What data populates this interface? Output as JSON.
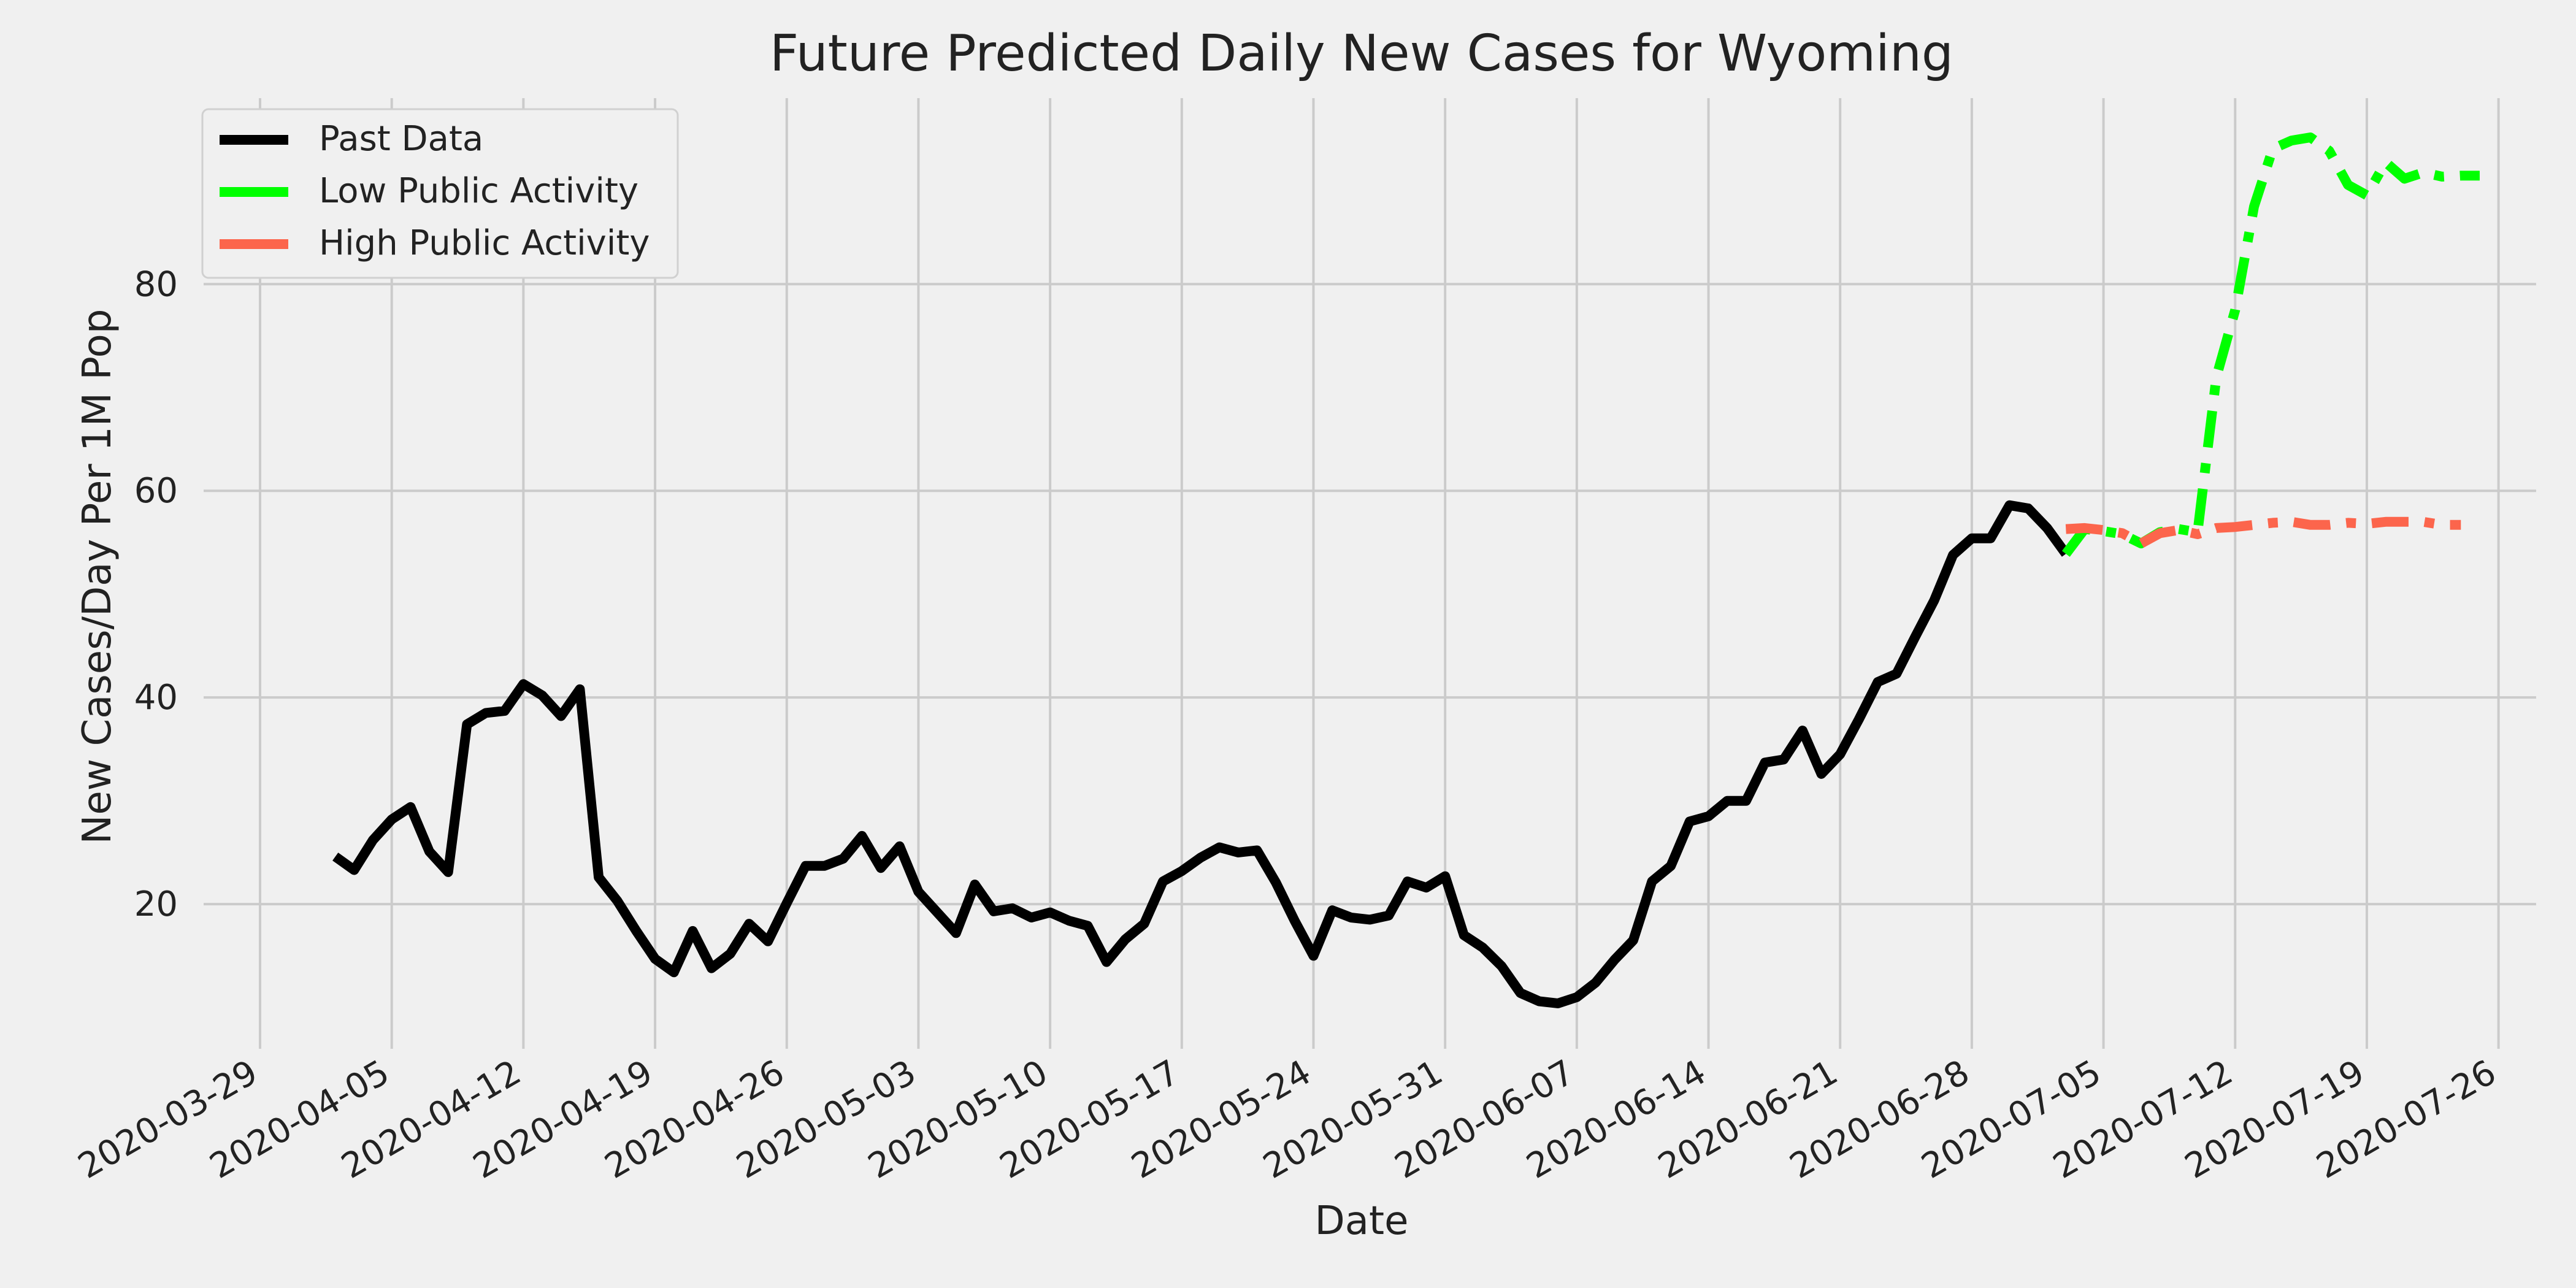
{
  "chart_data": {
    "type": "line",
    "title": "Future Predicted Daily New Cases for Wyoming",
    "xlabel": "Date",
    "ylabel": "New Cases/Day Per 1M Pop",
    "xlim": [
      "2020-03-26",
      "2020-07-28"
    ],
    "ylim": [
      6,
      98
    ],
    "yticks": [
      20,
      40,
      60,
      80
    ],
    "xticks": [
      "2020-03-29",
      "2020-04-05",
      "2020-04-12",
      "2020-04-19",
      "2020-04-26",
      "2020-05-03",
      "2020-05-10",
      "2020-05-17",
      "2020-05-24",
      "2020-05-31",
      "2020-06-07",
      "2020-06-14",
      "2020-06-21",
      "2020-06-28",
      "2020-07-05",
      "2020-07-12",
      "2020-07-19",
      "2020-07-26"
    ],
    "grid": true,
    "legend_position": "top-left",
    "series": [
      {
        "name": "Past Data",
        "color": "#000000",
        "style": "solid",
        "start_date": "2020-04-02",
        "values": [
          24.6,
          23.3,
          26.2,
          28.2,
          29.4,
          25.1,
          23.1,
          37.4,
          38.5,
          38.7,
          41.3,
          40.2,
          38.2,
          40.8,
          22.6,
          20.3,
          17.4,
          14.7,
          13.4,
          17.4,
          13.8,
          15.2,
          18.1,
          16.4,
          20.1,
          23.7,
          23.7,
          24.4,
          26.6,
          23.5,
          25.6,
          21.2,
          19.2,
          17.2,
          21.9,
          19.3,
          19.6,
          18.7,
          19.2,
          18.4,
          17.9,
          14.4,
          16.6,
          18.1,
          22.2,
          23.2,
          24.5,
          25.5,
          25.0,
          25.2,
          22.1,
          18.4,
          15.0,
          19.4,
          18.7,
          18.5,
          18.9,
          22.2,
          21.6,
          22.7,
          17.0,
          15.8,
          14.0,
          11.4,
          10.6,
          10.4,
          11.0,
          12.4,
          14.6,
          16.5,
          22.2,
          23.7,
          28.0,
          28.5,
          30.0,
          30.0,
          33.7,
          34.0,
          36.8,
          32.6,
          34.5,
          37.9,
          41.5,
          42.3,
          45.9,
          49.4,
          53.8,
          55.4,
          55.4,
          58.6,
          58.3,
          56.4,
          53.9
        ]
      },
      {
        "name": "Low Public Activity",
        "color": "#00ff00",
        "style": "dashdot",
        "start_date": "2020-07-03",
        "values": [
          53.9,
          56.3,
          56.1,
          55.8,
          54.9,
          56.0,
          56.3,
          56.0,
          71.0,
          77.5,
          87.5,
          93.1,
          93.9,
          94.2,
          92.9,
          89.6,
          88.6,
          91.8,
          90.2,
          90.8,
          90.4,
          90.5,
          90.5
        ]
      },
      {
        "name": "High Public Activity",
        "color": "#fc654c",
        "style": "dashdot",
        "start_date": "2020-07-03",
        "values": [
          56.3,
          56.4,
          56.2,
          55.9,
          54.9,
          55.9,
          56.2,
          55.8,
          56.4,
          56.5,
          56.7,
          56.9,
          57.0,
          56.7,
          56.7,
          56.9,
          56.8,
          57.0,
          57.0,
          57.0,
          56.7,
          56.7
        ]
      }
    ]
  }
}
